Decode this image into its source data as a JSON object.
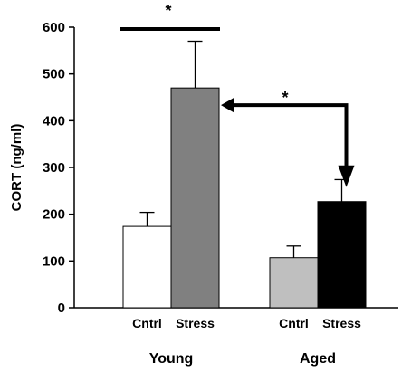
{
  "chart_data": {
    "type": "bar",
    "ylabel": "CORT (ng/ml)",
    "ylim": [
      0,
      600
    ],
    "yticks": [
      0,
      100,
      200,
      300,
      400,
      500,
      600
    ],
    "groups": [
      {
        "name": "Young",
        "bars": [
          {
            "label": "Cntrl",
            "value": 174,
            "error": 30,
            "color": "#ffffff"
          },
          {
            "label": "Stress",
            "value": 470,
            "error": 100,
            "color": "#808080"
          }
        ]
      },
      {
        "name": "Aged",
        "bars": [
          {
            "label": "Cntrl",
            "value": 107,
            "error": 25,
            "color": "#bfbfbf"
          },
          {
            "label": "Stress",
            "value": 227,
            "error": 47,
            "color": "#000000"
          }
        ]
      }
    ],
    "annotations": [
      {
        "text": "*",
        "type": "bracket",
        "note": "Young Cntrl vs Young Stress"
      },
      {
        "text": "*",
        "type": "arrow",
        "note": "Young Stress vs Aged Stress"
      }
    ]
  }
}
